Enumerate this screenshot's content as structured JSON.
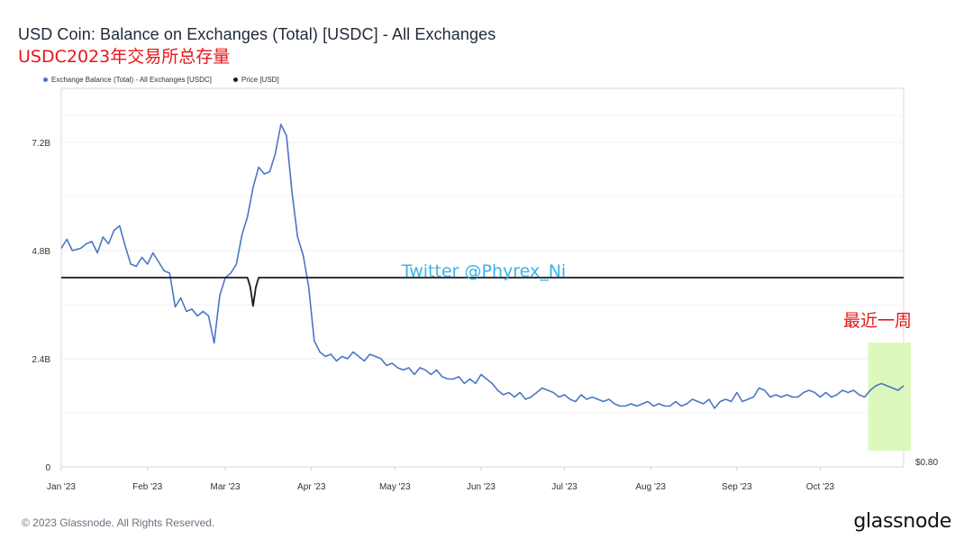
{
  "header": {
    "title": "USD Coin: Balance on Exchanges (Total) [USDC] - All Exchanges",
    "subtitle": "USDC2023年交易所总存量"
  },
  "legend": {
    "items": [
      {
        "label": "Exchange Balance (Total) - All Exchanges [USDC]",
        "color": "#4a76c6"
      },
      {
        "label": "Price [USD]",
        "color": "#1a1a1a"
      }
    ]
  },
  "annotations": {
    "watermark": "Twitter @Phyrex_Ni",
    "watermark_color": "#3bb3e6",
    "recent_week_label": "最近一周",
    "recent_week_color": "#e8151a",
    "highlight_color": "#d7f7b2"
  },
  "footer": {
    "copyright": "© 2023 Glassnode. All Rights Reserved.",
    "logo": "glassnode"
  },
  "chart_data": {
    "type": "line",
    "title": "USD Coin: Balance on Exchanges (Total) [USDC] - All Exchanges",
    "x_tick_labels": [
      "Jan '23",
      "Feb '23",
      "Mar '23",
      "Apr '23",
      "May '23",
      "Jun '23",
      "Jul '23",
      "Aug '23",
      "Sep '23",
      "Oct '23"
    ],
    "x_range": [
      "2023-01-01",
      "2023-10-31"
    ],
    "y_left": {
      "ticks": [
        0,
        2.4,
        4.8,
        7.2
      ],
      "tick_labels": [
        "0",
        "2.4B",
        "4.8B",
        "7.2B"
      ],
      "range": [
        0,
        8.4
      ],
      "unit": "B USDC"
    },
    "y_right": {
      "tick_labels": [
        "$0.80"
      ],
      "price_range": [
        0.8,
        1.2
      ]
    },
    "grid": true,
    "legend_position": "top-left",
    "highlight": {
      "label": "最近一周",
      "x_start": "2023-10-24",
      "x_end": "2023-10-31"
    },
    "series": [
      {
        "name": "Exchange Balance (Total) - All Exchanges [USDC]",
        "color": "#4a76c6",
        "axis": "left",
        "points": [
          [
            "2023-01-01",
            4.85
          ],
          [
            "2023-01-03",
            5.05
          ],
          [
            "2023-01-05",
            4.8
          ],
          [
            "2023-01-08",
            4.85
          ],
          [
            "2023-01-10",
            4.95
          ],
          [
            "2023-01-12",
            5.0
          ],
          [
            "2023-01-14",
            4.75
          ],
          [
            "2023-01-16",
            5.1
          ],
          [
            "2023-01-18",
            4.95
          ],
          [
            "2023-01-20",
            5.25
          ],
          [
            "2023-01-22",
            5.35
          ],
          [
            "2023-01-24",
            4.9
          ],
          [
            "2023-01-26",
            4.5
          ],
          [
            "2023-01-28",
            4.45
          ],
          [
            "2023-01-30",
            4.65
          ],
          [
            "2023-02-01",
            4.5
          ],
          [
            "2023-02-03",
            4.75
          ],
          [
            "2023-02-05",
            4.55
          ],
          [
            "2023-02-07",
            4.35
          ],
          [
            "2023-02-09",
            4.3
          ],
          [
            "2023-02-11",
            3.55
          ],
          [
            "2023-02-13",
            3.75
          ],
          [
            "2023-02-15",
            3.45
          ],
          [
            "2023-02-17",
            3.5
          ],
          [
            "2023-02-19",
            3.35
          ],
          [
            "2023-02-21",
            3.45
          ],
          [
            "2023-02-23",
            3.35
          ],
          [
            "2023-02-25",
            2.75
          ],
          [
            "2023-02-27",
            3.8
          ],
          [
            "2023-03-01",
            4.2
          ],
          [
            "2023-03-03",
            4.3
          ],
          [
            "2023-03-05",
            4.5
          ],
          [
            "2023-03-07",
            5.15
          ],
          [
            "2023-03-09",
            5.55
          ],
          [
            "2023-03-11",
            6.2
          ],
          [
            "2023-03-13",
            6.65
          ],
          [
            "2023-03-15",
            6.5
          ],
          [
            "2023-03-17",
            6.55
          ],
          [
            "2023-03-19",
            6.95
          ],
          [
            "2023-03-21",
            7.6
          ],
          [
            "2023-03-23",
            7.35
          ],
          [
            "2023-03-25",
            6.1
          ],
          [
            "2023-03-27",
            5.1
          ],
          [
            "2023-03-29",
            4.7
          ],
          [
            "2023-03-31",
            4.0
          ],
          [
            "2023-04-02",
            2.8
          ],
          [
            "2023-04-04",
            2.55
          ],
          [
            "2023-04-06",
            2.45
          ],
          [
            "2023-04-08",
            2.5
          ],
          [
            "2023-04-10",
            2.35
          ],
          [
            "2023-04-12",
            2.45
          ],
          [
            "2023-04-14",
            2.4
          ],
          [
            "2023-04-16",
            2.55
          ],
          [
            "2023-04-18",
            2.45
          ],
          [
            "2023-04-20",
            2.35
          ],
          [
            "2023-04-22",
            2.5
          ],
          [
            "2023-04-24",
            2.45
          ],
          [
            "2023-04-26",
            2.4
          ],
          [
            "2023-04-28",
            2.25
          ],
          [
            "2023-04-30",
            2.3
          ],
          [
            "2023-05-02",
            2.2
          ],
          [
            "2023-05-04",
            2.15
          ],
          [
            "2023-05-06",
            2.2
          ],
          [
            "2023-05-08",
            2.05
          ],
          [
            "2023-05-10",
            2.2
          ],
          [
            "2023-05-12",
            2.15
          ],
          [
            "2023-05-14",
            2.05
          ],
          [
            "2023-05-16",
            2.15
          ],
          [
            "2023-05-18",
            2.0
          ],
          [
            "2023-05-20",
            1.95
          ],
          [
            "2023-05-22",
            1.95
          ],
          [
            "2023-05-24",
            2.0
          ],
          [
            "2023-05-26",
            1.85
          ],
          [
            "2023-05-28",
            1.95
          ],
          [
            "2023-05-30",
            1.85
          ],
          [
            "2023-06-01",
            2.05
          ],
          [
            "2023-06-03",
            1.95
          ],
          [
            "2023-06-05",
            1.85
          ],
          [
            "2023-06-07",
            1.7
          ],
          [
            "2023-06-09",
            1.6
          ],
          [
            "2023-06-11",
            1.65
          ],
          [
            "2023-06-13",
            1.55
          ],
          [
            "2023-06-15",
            1.65
          ],
          [
            "2023-06-17",
            1.5
          ],
          [
            "2023-06-19",
            1.55
          ],
          [
            "2023-06-21",
            1.65
          ],
          [
            "2023-06-23",
            1.75
          ],
          [
            "2023-06-25",
            1.7
          ],
          [
            "2023-06-27",
            1.65
          ],
          [
            "2023-06-29",
            1.55
          ],
          [
            "2023-07-01",
            1.6
          ],
          [
            "2023-07-03",
            1.5
          ],
          [
            "2023-07-05",
            1.45
          ],
          [
            "2023-07-07",
            1.6
          ],
          [
            "2023-07-09",
            1.5
          ],
          [
            "2023-07-11",
            1.55
          ],
          [
            "2023-07-13",
            1.5
          ],
          [
            "2023-07-15",
            1.45
          ],
          [
            "2023-07-17",
            1.5
          ],
          [
            "2023-07-19",
            1.4
          ],
          [
            "2023-07-21",
            1.35
          ],
          [
            "2023-07-23",
            1.35
          ],
          [
            "2023-07-25",
            1.4
          ],
          [
            "2023-07-27",
            1.35
          ],
          [
            "2023-07-29",
            1.4
          ],
          [
            "2023-07-31",
            1.45
          ],
          [
            "2023-08-02",
            1.35
          ],
          [
            "2023-08-04",
            1.4
          ],
          [
            "2023-08-06",
            1.35
          ],
          [
            "2023-08-08",
            1.35
          ],
          [
            "2023-08-10",
            1.45
          ],
          [
            "2023-08-12",
            1.35
          ],
          [
            "2023-08-14",
            1.4
          ],
          [
            "2023-08-16",
            1.5
          ],
          [
            "2023-08-18",
            1.45
          ],
          [
            "2023-08-20",
            1.4
          ],
          [
            "2023-08-22",
            1.5
          ],
          [
            "2023-08-24",
            1.3
          ],
          [
            "2023-08-26",
            1.45
          ],
          [
            "2023-08-28",
            1.5
          ],
          [
            "2023-08-30",
            1.45
          ],
          [
            "2023-09-01",
            1.65
          ],
          [
            "2023-09-03",
            1.45
          ],
          [
            "2023-09-05",
            1.5
          ],
          [
            "2023-09-07",
            1.55
          ],
          [
            "2023-09-09",
            1.75
          ],
          [
            "2023-09-11",
            1.7
          ],
          [
            "2023-09-13",
            1.55
          ],
          [
            "2023-09-15",
            1.6
          ],
          [
            "2023-09-17",
            1.55
          ],
          [
            "2023-09-19",
            1.6
          ],
          [
            "2023-09-21",
            1.55
          ],
          [
            "2023-09-23",
            1.55
          ],
          [
            "2023-09-25",
            1.65
          ],
          [
            "2023-09-27",
            1.7
          ],
          [
            "2023-09-29",
            1.65
          ],
          [
            "2023-10-01",
            1.55
          ],
          [
            "2023-10-03",
            1.65
          ],
          [
            "2023-10-05",
            1.55
          ],
          [
            "2023-10-07",
            1.6
          ],
          [
            "2023-10-09",
            1.7
          ],
          [
            "2023-10-11",
            1.65
          ],
          [
            "2023-10-13",
            1.7
          ],
          [
            "2023-10-15",
            1.6
          ],
          [
            "2023-10-17",
            1.55
          ],
          [
            "2023-10-19",
            1.7
          ],
          [
            "2023-10-21",
            1.8
          ],
          [
            "2023-10-23",
            1.85
          ],
          [
            "2023-10-25",
            1.8
          ],
          [
            "2023-10-27",
            1.75
          ],
          [
            "2023-10-29",
            1.7
          ],
          [
            "2023-10-31",
            1.8
          ]
        ]
      },
      {
        "name": "Price [USD]",
        "color": "#1a1a1a",
        "axis": "right",
        "points": [
          [
            "2023-01-01",
            1.0
          ],
          [
            "2023-02-01",
            1.0
          ],
          [
            "2023-03-01",
            1.0
          ],
          [
            "2023-03-09",
            1.0
          ],
          [
            "2023-03-10",
            0.99
          ],
          [
            "2023-03-11",
            0.97
          ],
          [
            "2023-03-12",
            0.99
          ],
          [
            "2023-03-13",
            1.0
          ],
          [
            "2023-04-01",
            1.0
          ],
          [
            "2023-05-01",
            1.0
          ],
          [
            "2023-06-01",
            1.0
          ],
          [
            "2023-07-01",
            1.0
          ],
          [
            "2023-08-01",
            1.0
          ],
          [
            "2023-09-01",
            1.0
          ],
          [
            "2023-10-01",
            1.0
          ],
          [
            "2023-10-31",
            1.0
          ]
        ]
      }
    ]
  }
}
